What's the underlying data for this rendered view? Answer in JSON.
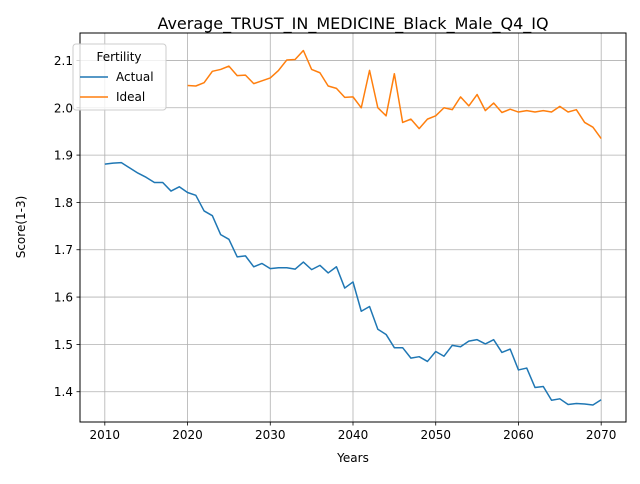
{
  "chart_data": {
    "type": "line",
    "title": "Average_TRUST_IN_MEDICINE_Black_Male_Q4_IQ",
    "xlabel": "Years",
    "ylabel": "Score(1-3)",
    "xlim": [
      2007,
      2073
    ],
    "ylim": [
      1.336,
      2.158
    ],
    "x_ticks": [
      2010,
      2020,
      2030,
      2040,
      2050,
      2060,
      2070
    ],
    "y_ticks": [
      1.4,
      1.5,
      1.6,
      1.7,
      1.8,
      1.9,
      2.0,
      2.1
    ],
    "grid": true,
    "legend": {
      "title": "Fertility",
      "placement": "top-left"
    },
    "x": [
      2010,
      2011,
      2012,
      2013,
      2014,
      2015,
      2016,
      2017,
      2018,
      2019,
      2020,
      2021,
      2022,
      2023,
      2024,
      2025,
      2026,
      2027,
      2028,
      2029,
      2030,
      2031,
      2032,
      2033,
      2034,
      2035,
      2036,
      2037,
      2038,
      2039,
      2040,
      2041,
      2042,
      2043,
      2044,
      2045,
      2046,
      2047,
      2048,
      2049,
      2050,
      2051,
      2052,
      2053,
      2054,
      2055,
      2056,
      2057,
      2058,
      2059,
      2060,
      2061,
      2062,
      2063,
      2064,
      2065,
      2066,
      2067,
      2068,
      2069,
      2070
    ],
    "series": [
      {
        "name": "Actual",
        "color": "#1f77b4",
        "values": [
          1.881,
          1.883,
          1.884,
          1.873,
          1.862,
          1.853,
          1.842,
          1.842,
          1.824,
          1.833,
          1.821,
          1.815,
          1.782,
          1.772,
          1.732,
          1.722,
          1.685,
          1.687,
          1.664,
          1.671,
          1.66,
          1.662,
          1.662,
          1.659,
          1.674,
          1.658,
          1.667,
          1.651,
          1.664,
          1.619,
          1.632,
          1.57,
          1.58,
          1.532,
          1.521,
          1.493,
          1.493,
          1.471,
          1.474,
          1.464,
          1.485,
          1.475,
          1.498,
          1.495,
          1.507,
          1.51,
          1.501,
          1.51,
          1.483,
          1.49,
          1.446,
          1.45,
          1.409,
          1.411,
          1.382,
          1.385,
          1.373,
          1.375,
          1.374,
          1.372,
          1.383
        ]
      },
      {
        "name": "Ideal",
        "color": "#ff7f0e",
        "values": [
          null,
          null,
          null,
          null,
          null,
          null,
          null,
          null,
          null,
          null,
          2.047,
          2.046,
          2.053,
          2.077,
          2.081,
          2.088,
          2.068,
          2.069,
          2.051,
          2.057,
          2.063,
          2.079,
          2.101,
          2.102,
          2.121,
          2.081,
          2.074,
          2.046,
          2.041,
          2.022,
          2.023,
          2.0,
          2.079,
          2.0,
          1.983,
          2.072,
          1.969,
          1.976,
          1.956,
          1.976,
          1.983,
          2.0,
          1.996,
          2.023,
          2.004,
          2.028,
          1.994,
          2.01,
          1.99,
          1.997,
          1.991,
          1.994,
          1.991,
          1.994,
          1.991,
          2.003,
          1.991,
          1.996,
          1.969,
          1.959,
          1.935
        ]
      }
    ]
  }
}
